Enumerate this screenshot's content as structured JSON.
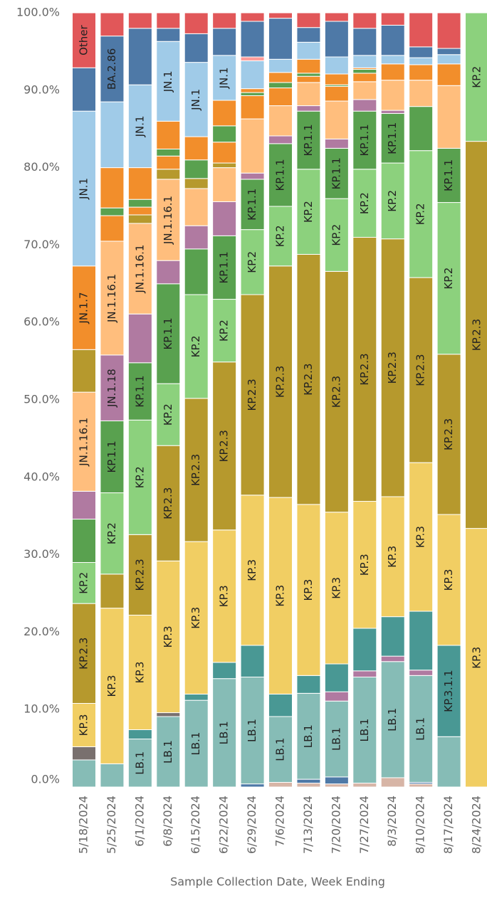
{
  "chart_data": {
    "type": "stacked_bar",
    "x_label": "Sample Collection Date, Week Ending",
    "categories": [
      "5/18/2024",
      "5/25/2024",
      "6/1/2024",
      "6/8/2024",
      "6/15/2024",
      "6/22/2024",
      "6/29/2024",
      "7/6/2024",
      "7/13/2024",
      "7/20/2024",
      "7/27/2024",
      "8/3/2024",
      "8/10/2024",
      "8/17/2024",
      "8/24/2024"
    ],
    "ylim": [
      0,
      100
    ],
    "yticks": [
      {
        "value": 0,
        "label": "0.0%"
      },
      {
        "value": 10,
        "label": "10.0%"
      },
      {
        "value": 20,
        "label": "20.0%"
      },
      {
        "value": 30,
        "label": "30.0%"
      },
      {
        "value": 40,
        "label": "40.0%"
      },
      {
        "value": 50,
        "label": "50.0%"
      },
      {
        "value": 60,
        "label": "60.0%"
      },
      {
        "value": 70,
        "label": "70.0%"
      },
      {
        "value": 80,
        "label": "80.0%"
      },
      {
        "value": 90,
        "label": "90.0%"
      },
      {
        "value": 100,
        "label": "100.0%"
      }
    ],
    "series": [
      {
        "color": "#d7b5a6",
        "values": [
          null,
          null,
          null,
          null,
          null,
          null,
          null,
          0.6,
          0.5,
          0.4,
          0.5,
          1.2,
          0.4,
          null,
          null
        ],
        "labels": [
          null,
          null,
          null,
          null,
          null,
          null,
          null,
          null,
          null,
          null,
          null,
          null,
          null,
          null,
          null
        ]
      },
      {
        "color": "#4e79a7",
        "values": [
          null,
          null,
          null,
          null,
          null,
          null,
          0.4,
          null,
          0.5,
          0.9,
          null,
          null,
          0.2,
          null,
          null
        ],
        "labels": [
          null,
          null,
          null,
          null,
          null,
          null,
          null,
          null,
          null,
          null,
          null,
          null,
          null,
          null,
          null
        ]
      },
      {
        "color": "#86bcb6",
        "values": [
          3.5,
          3.0,
          6.2,
          9.1,
          11.2,
          14,
          13.8,
          8.5,
          11.1,
          9.8,
          13.7,
          15,
          13.8,
          6.5,
          null
        ],
        "labels": [
          null,
          null,
          "LB.1",
          "LB.1",
          "LB.1",
          "LB.1",
          "LB.1",
          "LB.1",
          "LB.1",
          "LB.1",
          "LB.1",
          "LB.1",
          "LB.1",
          null,
          null
        ]
      },
      {
        "color": "#79706e",
        "values": [
          1.7,
          null,
          null,
          0.5,
          null,
          null,
          null,
          null,
          null,
          null,
          null,
          null,
          null,
          null,
          null
        ],
        "labels": [
          null,
          null,
          null,
          null,
          null,
          null,
          null,
          null,
          null,
          null,
          null,
          null,
          null,
          null,
          null
        ]
      },
      {
        "color": "#b07aa1",
        "values": [
          null,
          null,
          null,
          null,
          null,
          null,
          null,
          null,
          null,
          1.2,
          0.8,
          0.7,
          0.7,
          null,
          null
        ],
        "labels": [
          null,
          null,
          null,
          null,
          null,
          null,
          null,
          null,
          null,
          null,
          null,
          null,
          null,
          null,
          null
        ]
      },
      {
        "color": "#499894",
        "values": [
          null,
          null,
          1.2,
          null,
          0.8,
          2.1,
          4.1,
          2.9,
          2.3,
          3.6,
          5.5,
          5.1,
          7.6,
          11.8,
          null
        ],
        "labels": [
          null,
          null,
          null,
          null,
          null,
          null,
          null,
          null,
          null,
          null,
          null,
          null,
          null,
          "KP.3.1.1",
          null
        ]
      },
      {
        "color": "#f1ce63",
        "values": [
          5.6,
          20.1,
          14.8,
          19.6,
          19.7,
          17.1,
          19.4,
          25.4,
          22.1,
          19.6,
          16.4,
          15.5,
          19.2,
          16.9,
          33.4
        ],
        "labels": [
          "KP.3",
          "KP.3",
          "KP.3",
          "KP.3",
          "KP.3",
          "KP.3",
          "KP.3",
          "KP.3",
          "KP.3",
          "KP.3",
          "KP.3",
          "KP.3",
          "KP.3",
          "KP.3",
          "KP.3"
        ]
      },
      {
        "color": "#b6992d",
        "values": [
          12.9,
          4.4,
          10.4,
          14.9,
          18.5,
          21.7,
          25.9,
          29.9,
          32.3,
          31.1,
          34.1,
          33.3,
          23.9,
          20.7,
          50
        ],
        "labels": [
          "KP.2.3",
          null,
          "KP.2.3",
          "KP.2.3",
          "KP.2.3",
          "KP.2.3",
          "KP.2.3",
          "KP.2.3",
          "KP.2.3",
          "KP.2.3",
          "KP.2.3",
          "KP.2.3",
          "KP.2.3",
          "KP.2.3",
          "KP.2.3"
        ]
      },
      {
        "color": "#8cd17d",
        "values": [
          5.3,
          10.5,
          14.8,
          8,
          13.4,
          8.1,
          8.4,
          7.7,
          11,
          9.4,
          8.8,
          9.8,
          16.4,
          19.6,
          16.6
        ],
        "labels": [
          "KP.2",
          "KP.2",
          "KP.2",
          "KP.2",
          "KP.2",
          "KP.2",
          "KP.2",
          "KP.2",
          "KP.2",
          "KP.2",
          "KP.2",
          "KP.2",
          "KP.2",
          "KP.2",
          "KP.2"
        ]
      },
      {
        "color": "#59a14f",
        "values": [
          5.6,
          9.3,
          7.4,
          12.9,
          5.9,
          8.2,
          6.5,
          8.1,
          7.5,
          6.5,
          7.5,
          6.4,
          5.7,
          7,
          null
        ],
        "labels": [
          null,
          "KP.1.1",
          "KP.1.1",
          "KP.1.1",
          null,
          "KP.1.1",
          "KP.1.1",
          "KP.1.1",
          "KP.1.1",
          "KP.1.1",
          "KP.1.1",
          "KP.1.1",
          null,
          "KP.1.1",
          null
        ]
      },
      {
        "color": "#b07aa1",
        "values": [
          3.6,
          8.5,
          6.3,
          3,
          3,
          4.4,
          0.8,
          1,
          0.7,
          1.2,
          1.5,
          0.4,
          null,
          null,
          null
        ],
        "labels": [
          null,
          "JN.1.18",
          null,
          null,
          null,
          null,
          null,
          null,
          null,
          null,
          null,
          null,
          null,
          null,
          null
        ]
      },
      {
        "color": "#ffbe7d",
        "values": [
          12.8,
          14.7,
          11.7,
          10.5,
          4.8,
          4.4,
          7,
          3.9,
          3,
          4.9,
          2.3,
          3.9,
          3.4,
          8.1,
          null
        ],
        "labels": [
          "JN.1.16.1",
          "JN.1.16.1",
          "JN.1.16.1",
          "JN.1.16.1",
          null,
          null,
          null,
          null,
          null,
          null,
          null,
          null,
          null,
          null,
          null
        ]
      },
      {
        "color": "#b6992d",
        "values": [
          5.5,
          null,
          1.1,
          1.3,
          1.3,
          0.6,
          null,
          null,
          null,
          null,
          null,
          null,
          null,
          null,
          null
        ],
        "labels": [
          null,
          null,
          null,
          null,
          null,
          null,
          null,
          null,
          null,
          null,
          null,
          null,
          null,
          null,
          null
        ]
      },
      {
        "color": "#f28e2b",
        "values": [
          10.8,
          3.3,
          1.0,
          1.7,
          null,
          2.7,
          3,
          2.3,
          0.8,
          1.9,
          1.1,
          2.1,
          2,
          2.8,
          null
        ],
        "labels": [
          "JN.1.7",
          null,
          null,
          null,
          null,
          null,
          null,
          null,
          null,
          null,
          null,
          null,
          null,
          null,
          null
        ]
      },
      {
        "color": "#59a14f",
        "values": [
          null,
          1.0,
          1.0,
          0.9,
          2.4,
          2.1,
          0.4,
          0.7,
          0.4,
          0.2,
          0.5,
          null,
          null,
          null,
          null
        ],
        "labels": [
          null,
          null,
          null,
          null,
          null,
          null,
          null,
          null,
          null,
          null,
          null,
          null,
          null,
          null,
          null
        ]
      },
      {
        "color": "#f28e2b",
        "values": [
          null,
          5.2,
          4.1,
          3.6,
          3,
          3.3,
          0.5,
          1.3,
          1.8,
          1.4,
          0.2,
          null,
          null,
          null,
          null
        ],
        "labels": [
          null,
          null,
          null,
          null,
          null,
          null,
          null,
          null,
          null,
          null,
          null,
          null,
          null,
          null,
          null
        ]
      },
      {
        "color": "#a0cbe8",
        "values": [
          20,
          8.5,
          10.7,
          10.3,
          9.6,
          5.8,
          3.6,
          1.7,
          2.2,
          2.2,
          1.6,
          1.1,
          0.9,
          1.2,
          null
        ],
        "labels": [
          "JN.1",
          null,
          "JN.1",
          "JN.1",
          "JN.1",
          "JN.1",
          null,
          null,
          null,
          null,
          null,
          null,
          null,
          null,
          null
        ]
      },
      {
        "color": "#ff9d9a",
        "values": [
          null,
          null,
          null,
          null,
          null,
          null,
          0.5,
          null,
          null,
          null,
          null,
          null,
          null,
          null,
          null
        ],
        "labels": [
          null,
          null,
          null,
          null,
          null,
          null,
          null,
          null,
          null,
          null,
          null,
          null,
          null,
          null,
          null
        ]
      },
      {
        "color": "#4e79a7",
        "values": [
          5.6,
          8.5,
          7.3,
          1.7,
          3.7,
          3.5,
          4.6,
          5.3,
          1.9,
          4.6,
          3.5,
          3.9,
          1.4,
          0.8,
          null
        ],
        "labels": [
          null,
          "BA.2.86",
          null,
          null,
          null,
          null,
          null,
          null,
          null,
          null,
          null,
          null,
          null,
          null,
          null
        ]
      },
      {
        "color": "#e15759",
        "values": [
          7.1,
          3,
          2,
          2,
          2.7,
          2,
          1.1,
          0.7,
          1.9,
          1.1,
          2,
          1.6,
          4.4,
          4.6,
          null
        ],
        "labels": [
          "Other",
          null,
          null,
          null,
          null,
          null,
          null,
          null,
          null,
          null,
          null,
          null,
          null,
          null,
          null
        ]
      }
    ]
  }
}
